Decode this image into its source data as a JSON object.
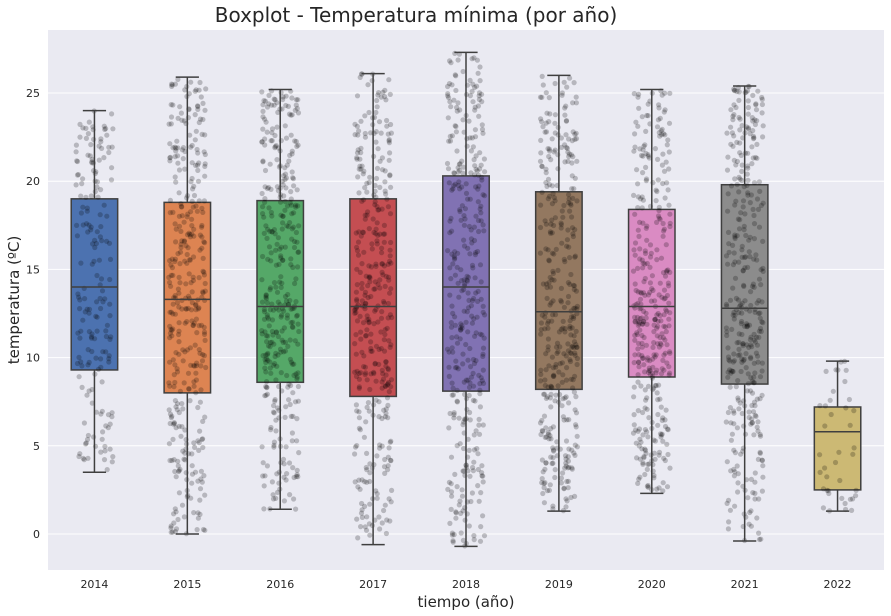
{
  "chart_data": {
    "type": "boxplot",
    "title": "Boxplot - Temperatura mínima (por año)",
    "xlabel": "tiempo (año)",
    "ylabel": "temperatura (ºC)",
    "ylim": [
      -2,
      28.8
    ],
    "yticks": [
      "0",
      "5",
      "10",
      "15",
      "20",
      "25"
    ],
    "grid": true,
    "categories": [
      "2014",
      "2015",
      "2016",
      "2017",
      "2018",
      "2019",
      "2020",
      "2021",
      "2022"
    ],
    "series": [
      {
        "category": "2014",
        "color": "#4c72b0",
        "whisker_low": 3.5,
        "q1": 9.3,
        "median": 14.0,
        "q3": 19.0,
        "whisker_high": 24.0
      },
      {
        "category": "2015",
        "color": "#dd8452",
        "whisker_low": 0.0,
        "q1": 8.0,
        "median": 13.3,
        "q3": 18.8,
        "whisker_high": 25.9
      },
      {
        "category": "2016",
        "color": "#55a868",
        "whisker_low": 1.4,
        "q1": 8.6,
        "median": 12.9,
        "q3": 18.9,
        "whisker_high": 25.2
      },
      {
        "category": "2017",
        "color": "#c44e52",
        "whisker_low": -0.6,
        "q1": 7.8,
        "median": 12.9,
        "q3": 19.0,
        "whisker_high": 26.1
      },
      {
        "category": "2018",
        "color": "#8172b3",
        "whisker_low": -0.7,
        "q1": 8.1,
        "median": 14.0,
        "q3": 20.3,
        "whisker_high": 27.3
      },
      {
        "category": "2019",
        "color": "#937860",
        "whisker_low": 1.3,
        "q1": 8.2,
        "median": 12.6,
        "q3": 19.4,
        "whisker_high": 26.0
      },
      {
        "category": "2020",
        "color": "#da8bc3",
        "whisker_low": 2.3,
        "q1": 8.9,
        "median": 12.9,
        "q3": 18.4,
        "whisker_high": 25.2
      },
      {
        "category": "2021",
        "color": "#8c8c8c",
        "whisker_low": -0.4,
        "q1": 8.5,
        "median": 12.8,
        "q3": 19.8,
        "whisker_high": 25.4
      },
      {
        "category": "2022",
        "color": "#ccb974",
        "whisker_low": 1.3,
        "q1": 2.5,
        "median": 5.8,
        "q3": 7.2,
        "whisker_high": 9.8
      }
    ],
    "points": {
      "overlay": "jittered strip of daily values per year",
      "color": "#000000",
      "opacity": 0.22,
      "counts": [
        181,
        365,
        365,
        365,
        365,
        365,
        365,
        365,
        40
      ]
    },
    "background_color": "#eaeaf2"
  }
}
